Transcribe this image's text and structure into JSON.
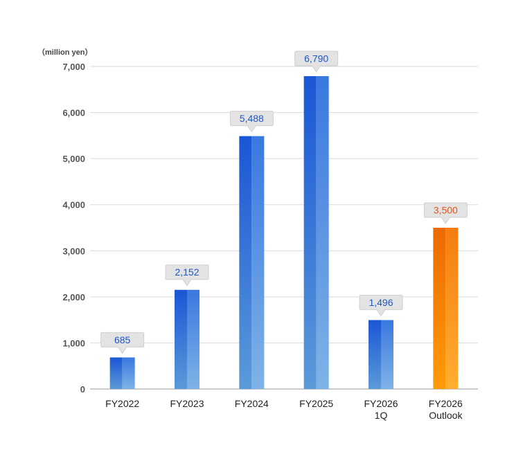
{
  "chart_data": {
    "type": "bar",
    "unit_label": "（million yen）",
    "categories": [
      [
        "FY2022"
      ],
      [
        "FY2023"
      ],
      [
        "FY2024"
      ],
      [
        "FY2025"
      ],
      [
        "FY2026",
        "1Q"
      ],
      [
        "FY2026",
        "Outlook"
      ]
    ],
    "values": [
      685,
      2152,
      5488,
      6790,
      1496,
      3500
    ],
    "value_labels": [
      "685",
      "2,152",
      "5,488",
      "6,790",
      "1,496",
      "3,500"
    ],
    "highlight_index": 5,
    "ylim": [
      0,
      7000
    ],
    "yticks": [
      0,
      1000,
      2000,
      3000,
      4000,
      5000,
      6000,
      7000
    ],
    "ytick_labels": [
      "0",
      "1,000",
      "2,000",
      "3,000",
      "4,000",
      "5,000",
      "6,000",
      "7,000"
    ],
    "grid": true,
    "colors": {
      "bar_dark": "#1a56d6",
      "bar_light": "#5b9ad8",
      "highlight_dark": "#ec6a00",
      "highlight_light": "#ff9b0a",
      "label_blue": "#1f55c5",
      "label_orange": "#e8531a",
      "callout_fill": "#e3e3e3",
      "grid": "#d9d9d9",
      "axis": "#999999"
    }
  }
}
